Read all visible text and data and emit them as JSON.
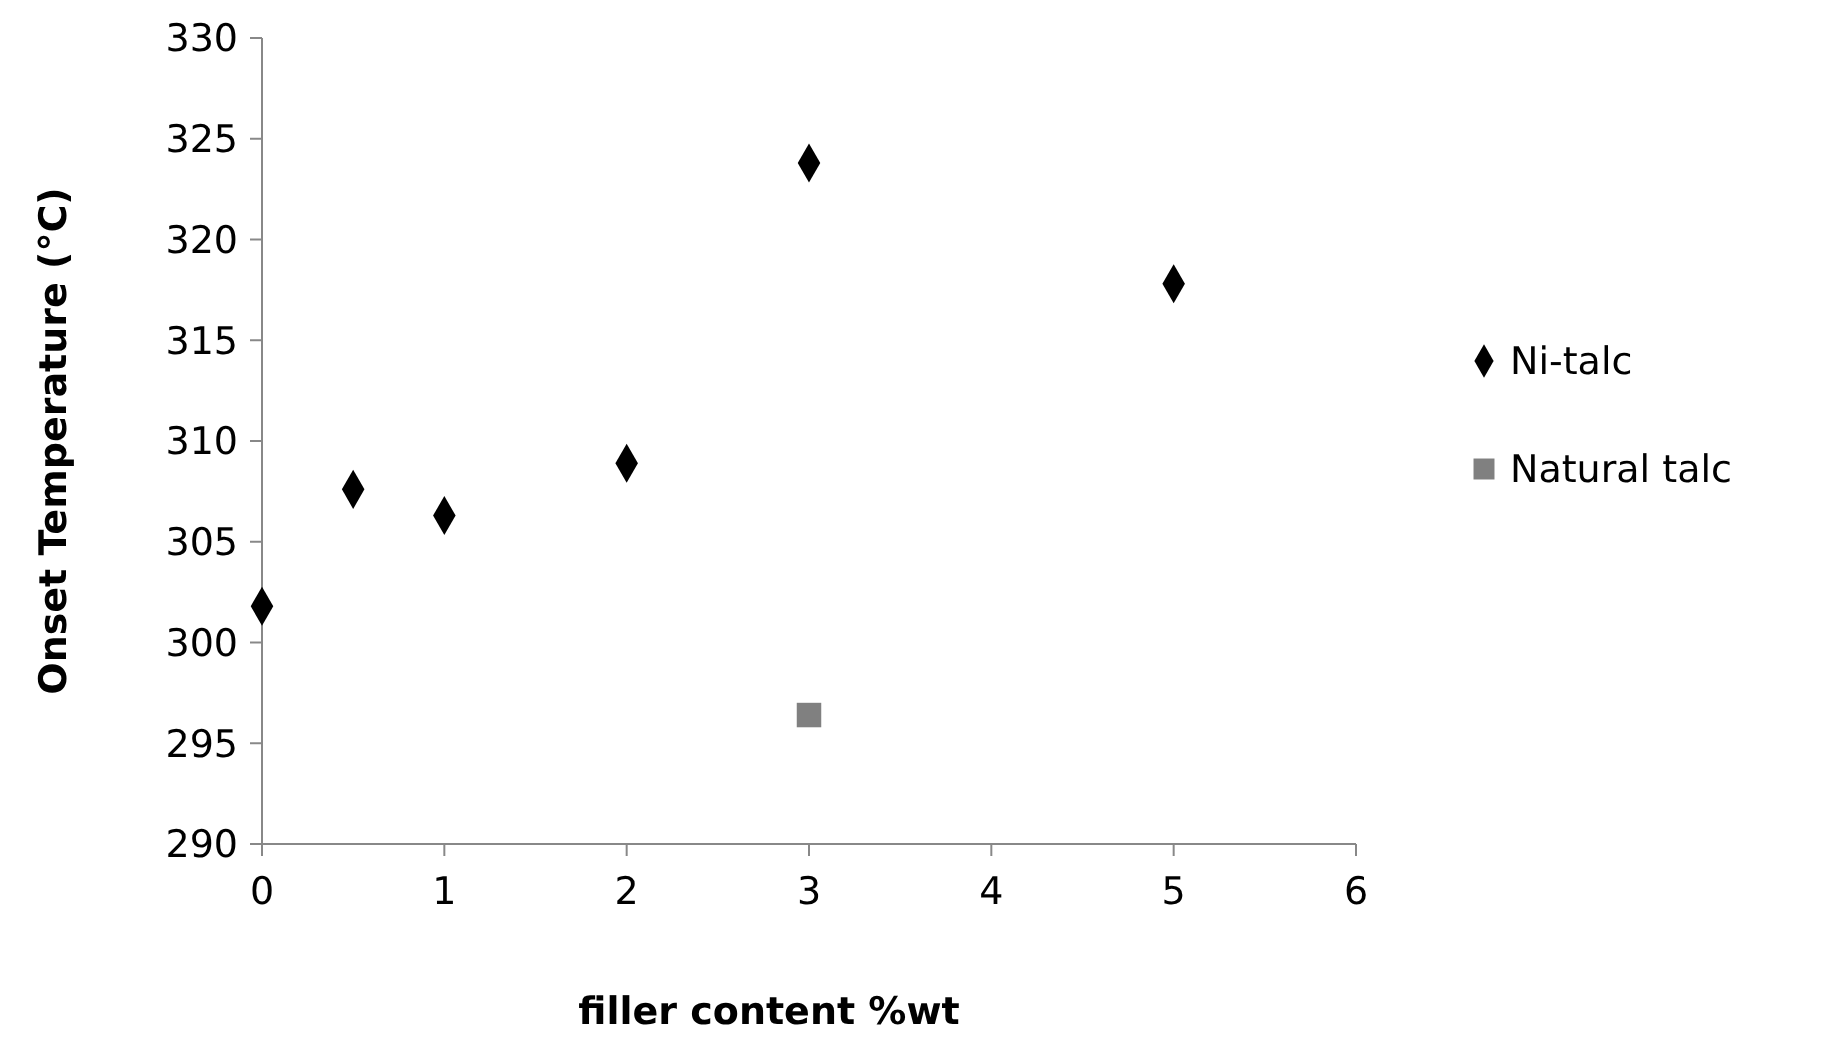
{
  "chart_data": {
    "type": "scatter",
    "xlabel": "filler content %wt",
    "ylabel": "Onset Temperature (°C)",
    "xlim": [
      0,
      6
    ],
    "xticks": [
      0,
      1,
      2,
      3,
      4,
      5,
      6
    ],
    "ylim": [
      290,
      330
    ],
    "yticks": [
      290,
      295,
      300,
      305,
      310,
      315,
      320,
      325,
      330
    ],
    "grid": false,
    "legend": "right",
    "series": [
      {
        "name": "Ni-talc",
        "color": "#000000",
        "marker": "diamond",
        "x": [
          0,
          0.5,
          1,
          2,
          3,
          5
        ],
        "values": [
          301.8,
          307.6,
          306.3,
          308.9,
          323.8,
          317.8
        ]
      },
      {
        "name": "Natural talc",
        "color": "#808080",
        "marker": "square",
        "x": [
          3
        ],
        "values": [
          296.4
        ]
      }
    ]
  }
}
